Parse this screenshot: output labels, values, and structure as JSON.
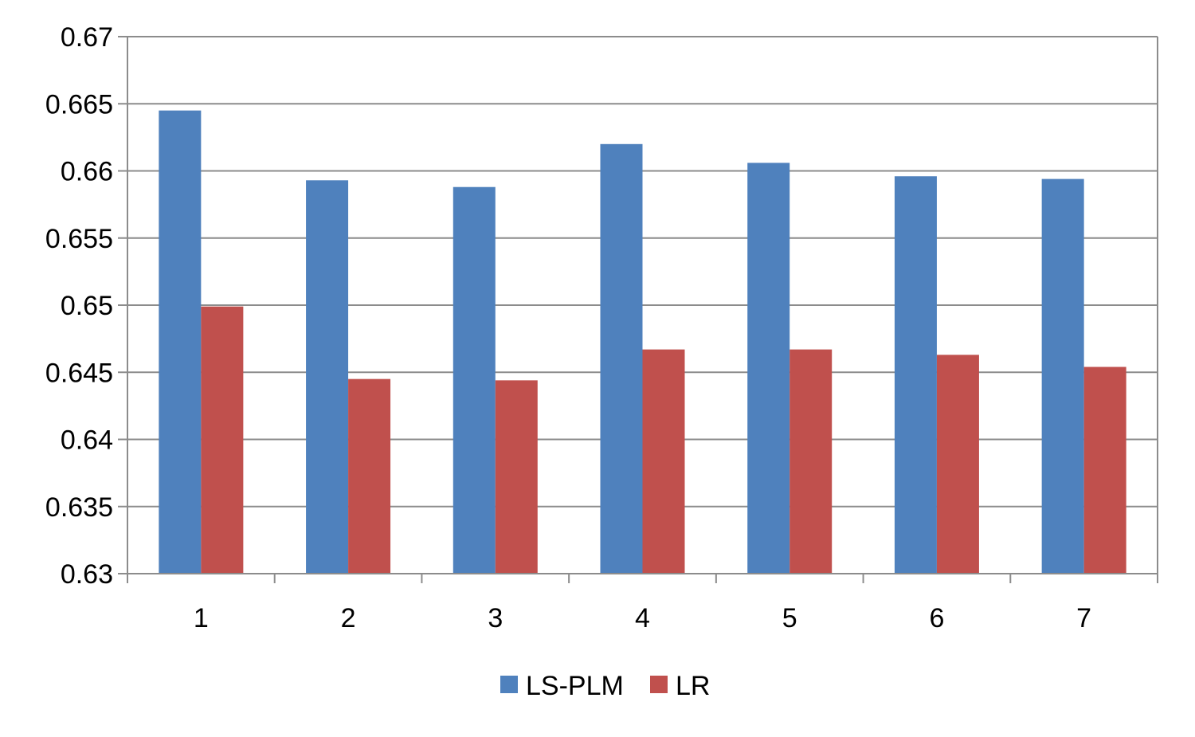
{
  "chart_data": {
    "type": "bar",
    "title": "",
    "xlabel": "",
    "ylabel": "",
    "categories": [
      "1",
      "2",
      "3",
      "4",
      "5",
      "6",
      "7"
    ],
    "series": [
      {
        "name": "LS-PLM",
        "color": "#4f81bd",
        "values": [
          0.6645,
          0.6593,
          0.6588,
          0.662,
          0.6606,
          0.6596,
          0.6594
        ]
      },
      {
        "name": "LR",
        "color": "#c0504d",
        "values": [
          0.6499,
          0.6445,
          0.6444,
          0.6467,
          0.6467,
          0.6463,
          0.6454
        ]
      }
    ],
    "ylim": [
      0.63,
      0.67
    ],
    "yticks": [
      "0.63",
      "0.635",
      "0.64",
      "0.645",
      "0.65",
      "0.655",
      "0.66",
      "0.665",
      "0.67"
    ],
    "grid": true,
    "legend": "bottom"
  }
}
